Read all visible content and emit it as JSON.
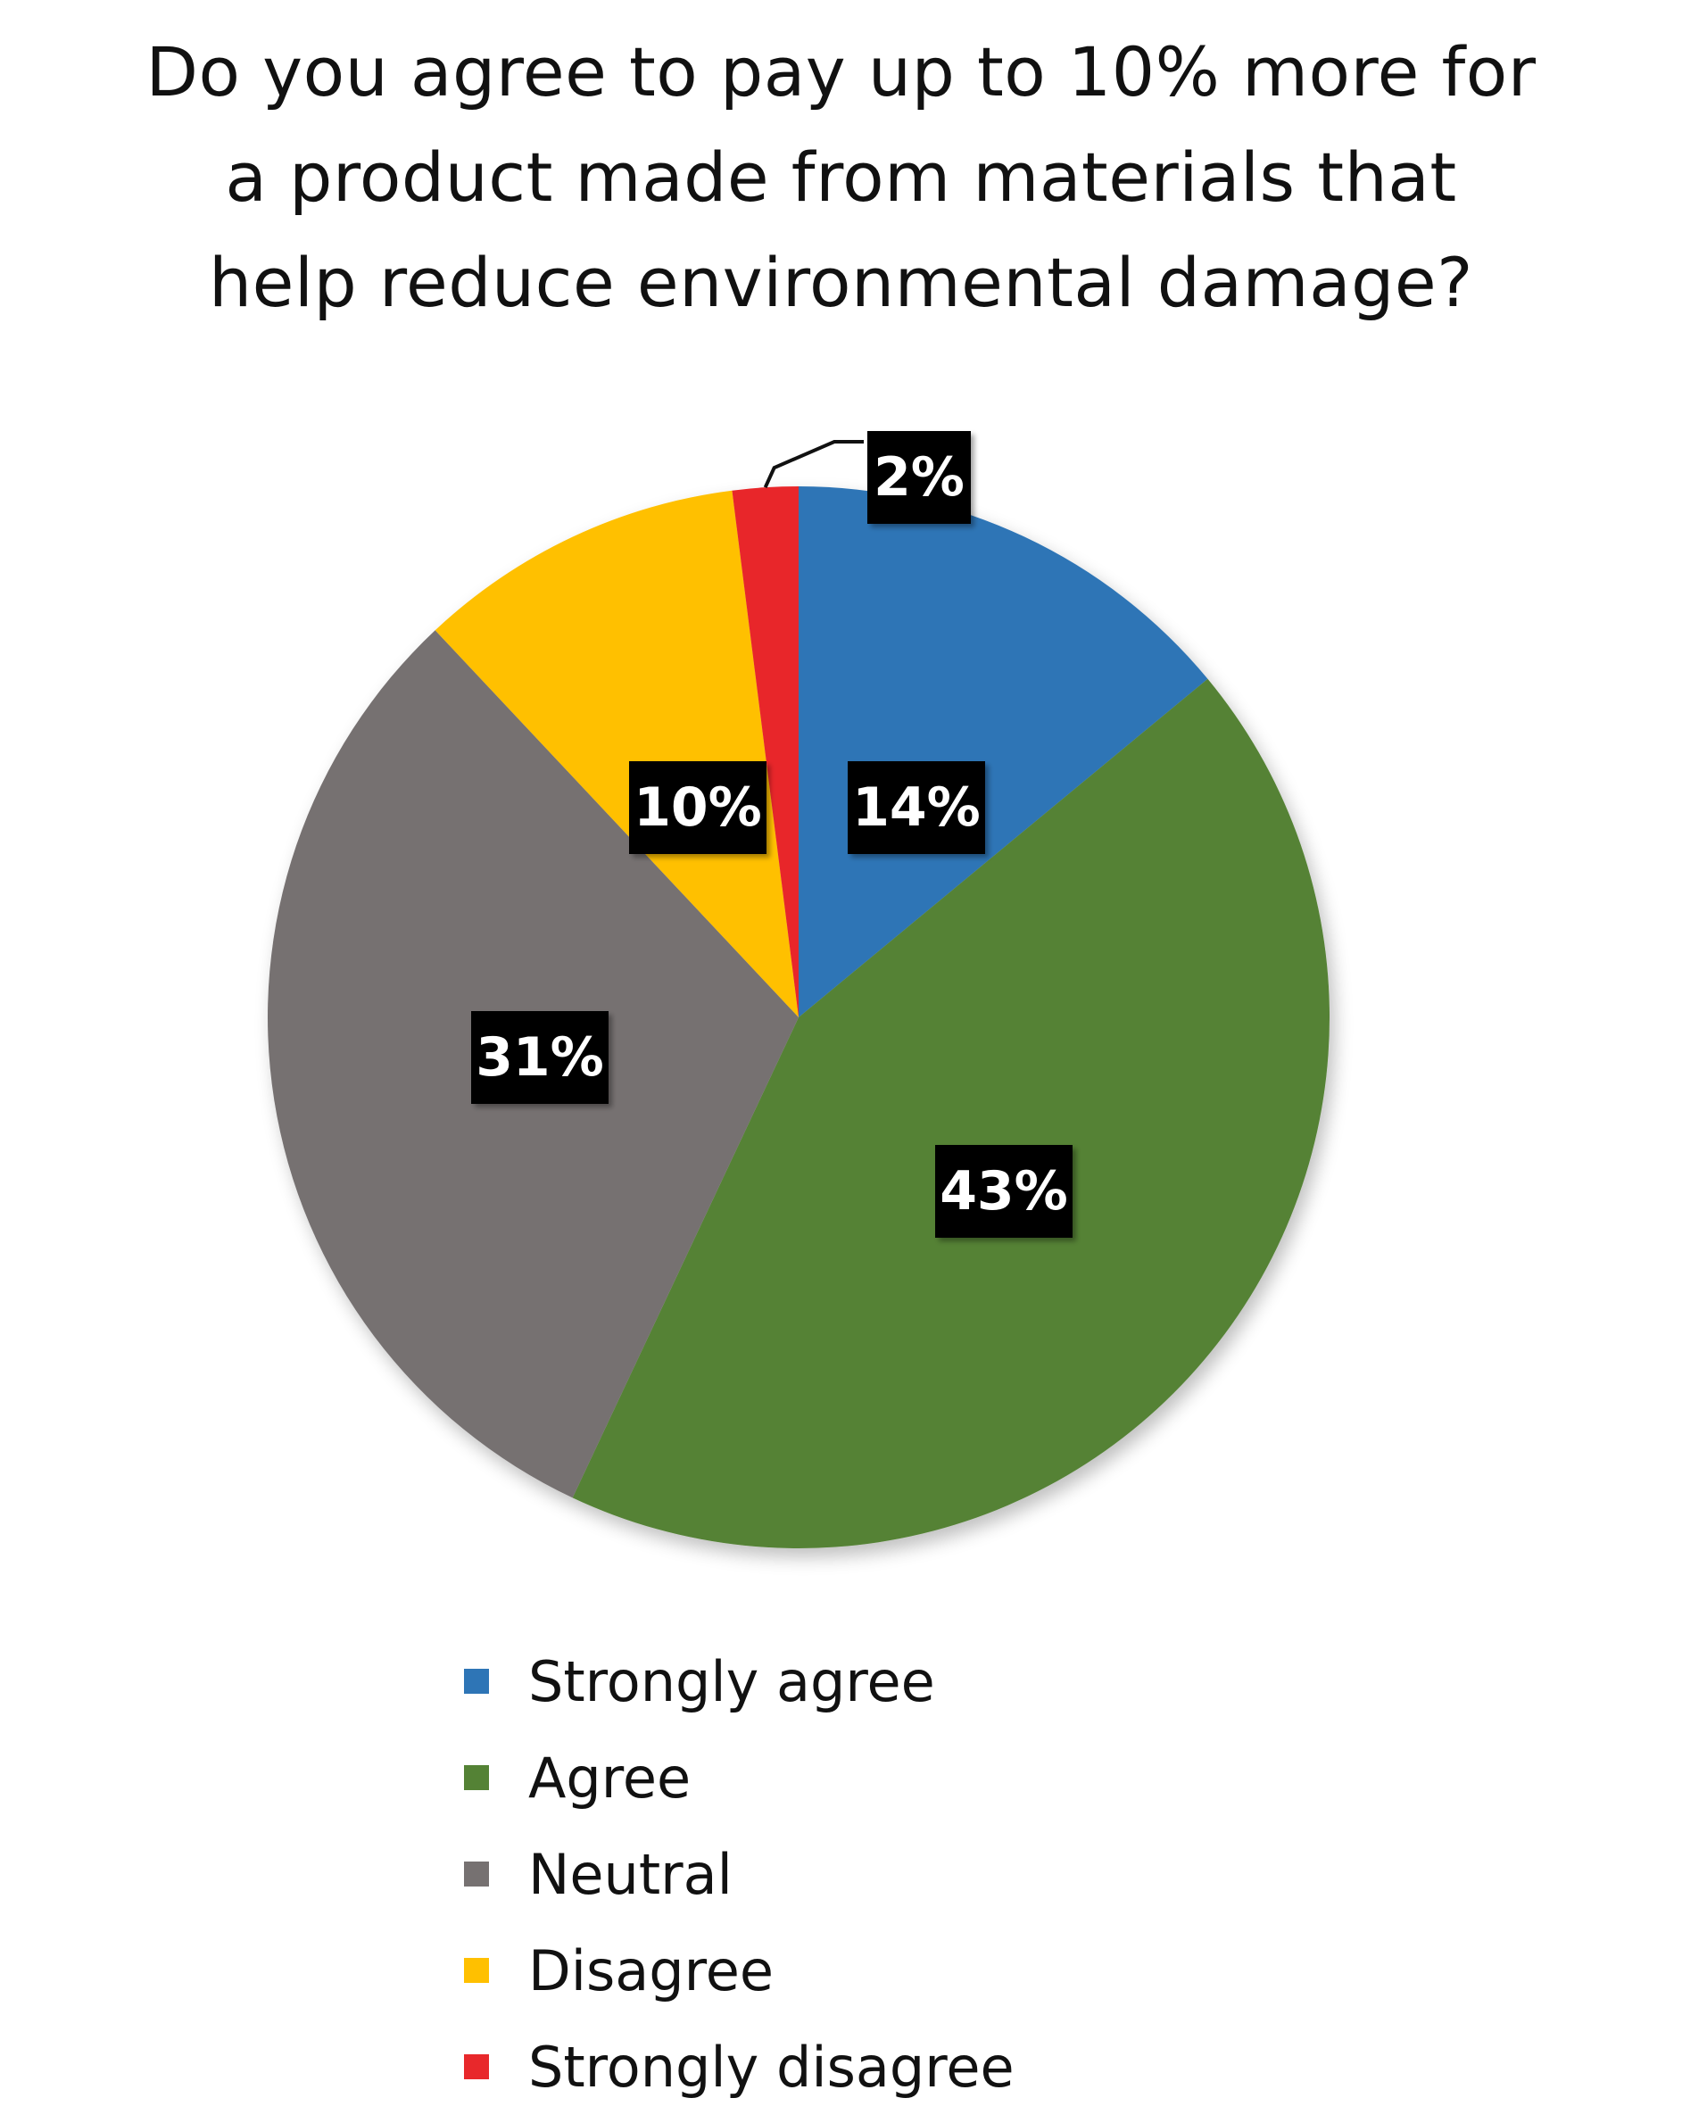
{
  "title": "Do you agree to pay up to 10% more for a product made from materials that help reduce environmental damage?",
  "chart_data": {
    "type": "pie",
    "title": "Do you agree to pay up to 10% more for a product made from materials that help reduce environmental damage?",
    "start_angle_deg": 0,
    "direction": "clockwise",
    "legend_position": "bottom",
    "slices": [
      {
        "label": "Strongly agree",
        "value": 14,
        "data_label": "14%",
        "color": "#2E75B6"
      },
      {
        "label": "Agree",
        "value": 43,
        "data_label": "43%",
        "color": "#548235"
      },
      {
        "label": "Neutral",
        "value": 31,
        "data_label": "31%",
        "color": "#767171"
      },
      {
        "label": "Disagree",
        "value": 10,
        "data_label": "10%",
        "color": "#FFC000"
      },
      {
        "label": "Strongly disagree",
        "value": 2,
        "data_label": "2%",
        "color": "#E8282B"
      }
    ]
  }
}
